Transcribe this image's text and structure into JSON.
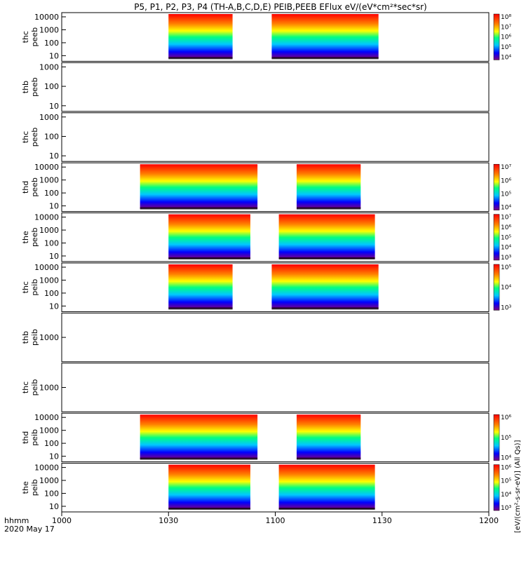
{
  "chart_data": {
    "type": "heatmap",
    "title": "P5, P1, P2, P3, P4 (TH-A,B,C,D,E) PEIB,PEEB EFlux eV/(eV*cm²*sec*sr)",
    "x_axis": {
      "ticks": [
        "1000",
        "1030",
        "1100",
        "1130",
        "1200"
      ],
      "label_line1": "hhmm",
      "label_line2": "2020 May 17"
    },
    "y_tick_labels": [
      "10",
      "100",
      "1000",
      "10000"
    ],
    "colorbar_unit_right": "[eV/(cm²-s-sr-eV)]",
    "colorbar_unit_long": "[eV/(cm²-s-sr-eV)] (All Qs)]",
    "panels": [
      {
        "sc": "thc",
        "inst": "peeb",
        "ylabel1": "thc",
        "ylabel2": "peeb",
        "yticks": [
          "10",
          "100",
          "1000",
          "10000"
        ],
        "colorbar": [
          "10⁴",
          "10⁵",
          "10⁶",
          "10⁷",
          "10⁸"
        ],
        "segments": [
          [
            1030,
            1048
          ],
          [
            1059,
            1129
          ]
        ]
      },
      {
        "sc": "thb",
        "inst": "peeb",
        "ylabel1": "thb",
        "ylabel2": "peeb",
        "yticks": [
          "10",
          "100",
          "1000"
        ],
        "colorbar": [],
        "segments": []
      },
      {
        "sc": "thc",
        "inst": "peeb",
        "ylabel1": "thc",
        "ylabel2": "peeb",
        "yticks": [
          "10",
          "100",
          "1000"
        ],
        "colorbar": [],
        "segments": []
      },
      {
        "sc": "thd",
        "inst": "peeb",
        "ylabel1": "thd",
        "ylabel2": "peeb",
        "yticks": [
          "10",
          "100",
          "1000",
          "10000"
        ],
        "colorbar": [
          "10⁴",
          "10⁵",
          "10⁶",
          "10⁷"
        ],
        "segments": [
          [
            1022,
            1055
          ],
          [
            1106,
            1124
          ]
        ]
      },
      {
        "sc": "the",
        "inst": "peeb",
        "ylabel1": "the",
        "ylabel2": "peeb",
        "yticks": [
          "10",
          "100",
          "1000",
          "10000"
        ],
        "colorbar": [
          "10³",
          "10⁴",
          "10⁵",
          "10⁶",
          "10⁷"
        ],
        "segments": [
          [
            1030,
            1053
          ],
          [
            1101,
            1128
          ]
        ]
      },
      {
        "sc": "thc",
        "inst": "peib",
        "ylabel1": "thc",
        "ylabel2": "peib",
        "yticks": [
          "10",
          "100",
          "1000",
          "10000"
        ],
        "colorbar": [
          "10³",
          "10⁴",
          "10⁵"
        ],
        "segments": [
          [
            1030,
            1048
          ],
          [
            1059,
            1129
          ]
        ]
      },
      {
        "sc": "thb",
        "inst": "peib",
        "ylabel1": "thb",
        "ylabel2": "peib",
        "yticks": [
          "1000"
        ],
        "colorbar": [],
        "segments": []
      },
      {
        "sc": "thc",
        "inst": "peib",
        "ylabel1": "thc",
        "ylabel2": "peib",
        "yticks": [
          "1000"
        ],
        "colorbar": [],
        "segments": []
      },
      {
        "sc": "thd",
        "inst": "peib",
        "ylabel1": "thd",
        "ylabel2": "peib",
        "yticks": [
          "10",
          "100",
          "1000",
          "10000"
        ],
        "colorbar": [
          "10⁴",
          "10⁵",
          "10⁶"
        ],
        "segments": [
          [
            1022,
            1055
          ],
          [
            1106,
            1124
          ]
        ]
      },
      {
        "sc": "the",
        "inst": "peib",
        "ylabel1": "the",
        "ylabel2": "peib",
        "yticks": [
          "10",
          "100",
          "1000",
          "10000"
        ],
        "colorbar": [
          "10³",
          "10⁴",
          "10⁵",
          "10⁶"
        ],
        "segments": [
          [
            1030,
            1053
          ],
          [
            1101,
            1128
          ]
        ]
      }
    ],
    "x_range": [
      "1000",
      "1200"
    ],
    "y_scale": "log",
    "palette": [
      "#ffffff",
      "#7f007f",
      "#0000ff",
      "#00c8ff",
      "#00ff80",
      "#ffff00",
      "#ff8000",
      "#ff0000"
    ]
  }
}
